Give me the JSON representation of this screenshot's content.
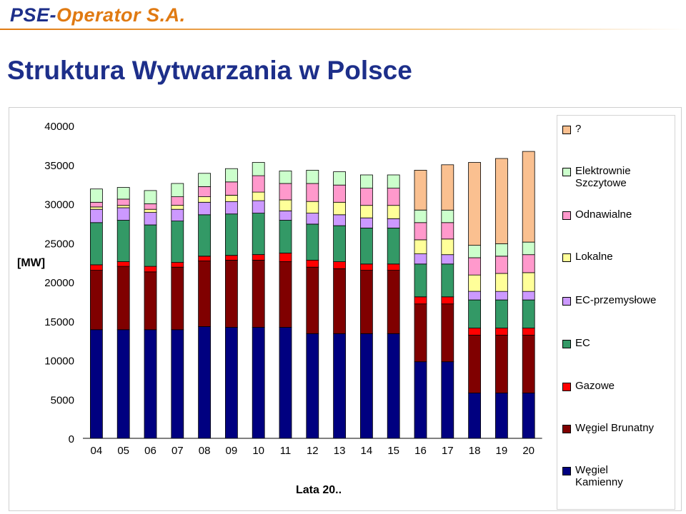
{
  "header": {
    "logo_part1": "PSE-",
    "logo_part2": "Operator S.A."
  },
  "slide": {
    "title": "Struktura Wytwarzania w Polsce"
  },
  "chart_data": {
    "type": "bar",
    "stacked": true,
    "title": "",
    "xlabel": "Lata 20..",
    "ylabel": "[MW]",
    "ylim": [
      0,
      40000
    ],
    "yticks": [
      "0",
      "5000",
      "10000",
      "15000",
      "20000",
      "25000",
      "30000",
      "35000",
      "40000"
    ],
    "categories": [
      "04",
      "05",
      "06",
      "07",
      "08",
      "09",
      "10",
      "11",
      "12",
      "13",
      "14",
      "15",
      "16",
      "17",
      "18",
      "19",
      "20"
    ],
    "legend_position": "right",
    "series": [
      {
        "name": "Węgiel\nKamienny",
        "color": "#000080",
        "values": [
          13900,
          13900,
          13900,
          13900,
          14300,
          14200,
          14200,
          14200,
          13400,
          13400,
          13400,
          13400,
          9800,
          9800,
          5800,
          5800,
          5800
        ]
      },
      {
        "name": "Węgiel Brunatny",
        "color": "#800000",
        "values": [
          7600,
          8100,
          7400,
          8000,
          8400,
          8600,
          8600,
          8400,
          8500,
          8300,
          8100,
          8100,
          7400,
          7400,
          7400,
          7400,
          7400
        ]
      },
      {
        "name": "Gazowe",
        "color": "#ff0000",
        "values": [
          700,
          600,
          700,
          600,
          600,
          600,
          700,
          1100,
          900,
          900,
          800,
          800,
          900,
          900,
          900,
          900,
          900
        ]
      },
      {
        "name": "EC",
        "color": "#339966",
        "values": [
          5400,
          5300,
          5300,
          5300,
          5300,
          5300,
          5300,
          4200,
          4600,
          4600,
          4600,
          4600,
          4200,
          4200,
          3600,
          3600,
          3600
        ]
      },
      {
        "name": "EC-przemysłowe",
        "color": "#cc99ff",
        "values": [
          1700,
          1600,
          1600,
          1500,
          1600,
          1600,
          1600,
          1200,
          1400,
          1400,
          1300,
          1200,
          1300,
          1200,
          1100,
          1100,
          1100
        ]
      },
      {
        "name": "Lokalne",
        "color": "#ffff99",
        "values": [
          300,
          300,
          400,
          500,
          700,
          800,
          1100,
          1400,
          1500,
          1600,
          1600,
          1700,
          1800,
          2000,
          2100,
          2300,
          2400
        ]
      },
      {
        "name": "Odnawialne",
        "color": "#ff99cc",
        "values": [
          600,
          800,
          700,
          1100,
          1300,
          1700,
          2100,
          2100,
          2300,
          2200,
          2200,
          2200,
          2200,
          2100,
          2200,
          2200,
          2300
        ]
      },
      {
        "name": "Elektrownie\nSzczytowe",
        "color": "#ccffcc",
        "values": [
          1700,
          1500,
          1700,
          1700,
          1700,
          1700,
          1700,
          1600,
          1700,
          1700,
          1700,
          1700,
          1600,
          1600,
          1600,
          1600,
          1600
        ]
      },
      {
        "name": "?",
        "color": "#fac090",
        "values": [
          0,
          0,
          0,
          0,
          0,
          0,
          0,
          0,
          0,
          0,
          0,
          0,
          5100,
          5800,
          10600,
          10900,
          11600
        ]
      }
    ]
  }
}
